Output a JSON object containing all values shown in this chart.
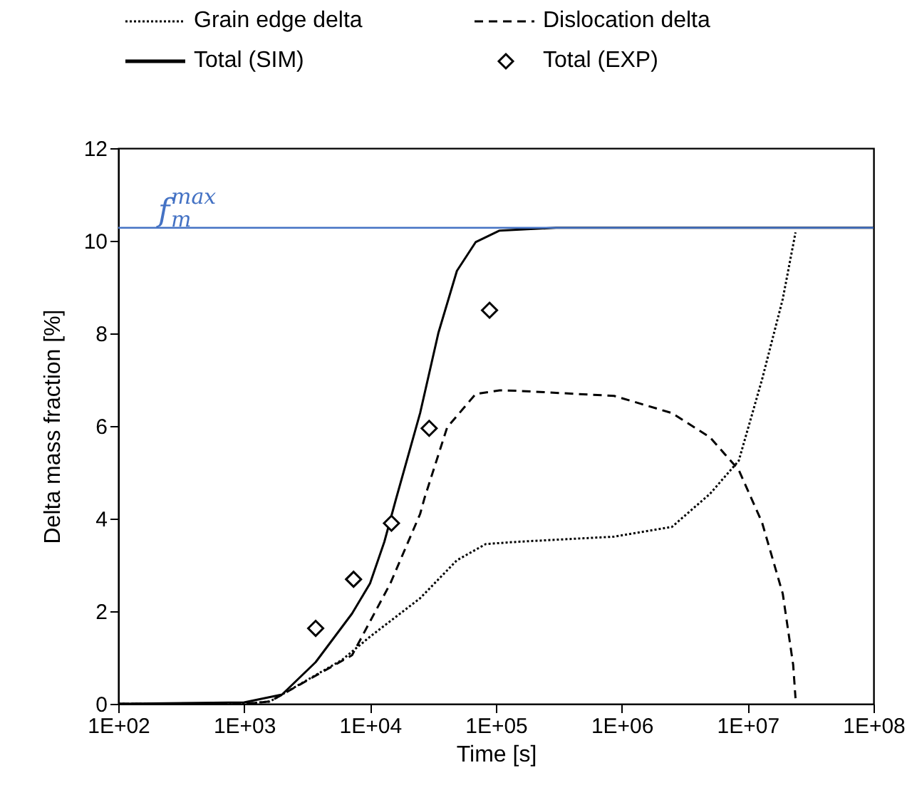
{
  "chart_data": {
    "type": "line",
    "xlabel": "Time [s]",
    "ylabel": "Delta mass fraction [%]",
    "log": "x",
    "xlim": [
      100,
      100000000
    ],
    "xticks": [
      {
        "value": 100,
        "label": "1E+02"
      },
      {
        "value": 1000,
        "label": "1E+03"
      },
      {
        "value": 10000,
        "label": "1E+04"
      },
      {
        "value": 100000,
        "label": "1E+05"
      },
      {
        "value": 1000000,
        "label": "1E+06"
      },
      {
        "value": 10000000,
        "label": "1E+07"
      },
      {
        "value": 100000000,
        "label": "1E+08"
      }
    ],
    "ylim": [
      0,
      12
    ],
    "yticks": [
      0,
      2,
      4,
      6,
      8,
      10,
      12
    ],
    "grid": false,
    "legend": "top",
    "series": [
      {
        "name": "Grain edge delta",
        "color": "#000000",
        "line_style": "dotted",
        "x": [
          100,
          1000,
          1600,
          6000,
          10000,
          25000,
          49000,
          83000,
          150000,
          870000,
          2500000,
          5000000,
          8500000,
          13000000,
          19000000,
          24000000
        ],
        "values": [
          0,
          0,
          0.05,
          0.95,
          1.45,
          2.28,
          3.1,
          3.45,
          3.5,
          3.61,
          3.82,
          4.53,
          5.25,
          7.0,
          8.74,
          10.18
        ]
      },
      {
        "name": "Dislocation delta",
        "color": "#000000",
        "line_style": "dashed",
        "x": [
          100,
          1000,
          1600,
          7200,
          14500,
          25000,
          27000,
          41000,
          69000,
          107000,
          150000,
          870000,
          2500000,
          5000000,
          8500000,
          13000000,
          19000000,
          23000000,
          24000000
        ],
        "values": [
          0,
          0,
          0.05,
          1.05,
          2.6,
          4.1,
          4.43,
          5.97,
          6.69,
          6.77,
          6.76,
          6.65,
          6.28,
          5.76,
          5.05,
          3.92,
          2.38,
          0.84,
          0.12
        ]
      },
      {
        "name": "Total (SIM)",
        "color": "#000000",
        "line_style": "solid",
        "x": [
          100,
          1000,
          2000,
          3700,
          7200,
          10000,
          13000,
          16000,
          25000,
          35000,
          49000,
          69000,
          107000,
          300000,
          1000000,
          10000000,
          100000000
        ],
        "values": [
          0,
          0.03,
          0.2,
          0.9,
          1.95,
          2.6,
          3.5,
          4.4,
          6.28,
          8.02,
          9.35,
          9.97,
          10.22,
          10.28,
          10.28,
          10.28,
          10.28
        ]
      },
      {
        "name": "Total (EXP)",
        "color": "#000000",
        "type": "scatter",
        "marker": "diamond",
        "x": [
          3700,
          7400,
          14800,
          29500,
          89000
        ],
        "values": [
          1.63,
          2.69,
          3.9,
          5.95,
          8.5
        ]
      }
    ],
    "ref_lines": [
      {
        "axis": "y",
        "value": 10.28,
        "label": "f$_{m}$$^{max}$",
        "color": "#4472c4"
      }
    ]
  }
}
